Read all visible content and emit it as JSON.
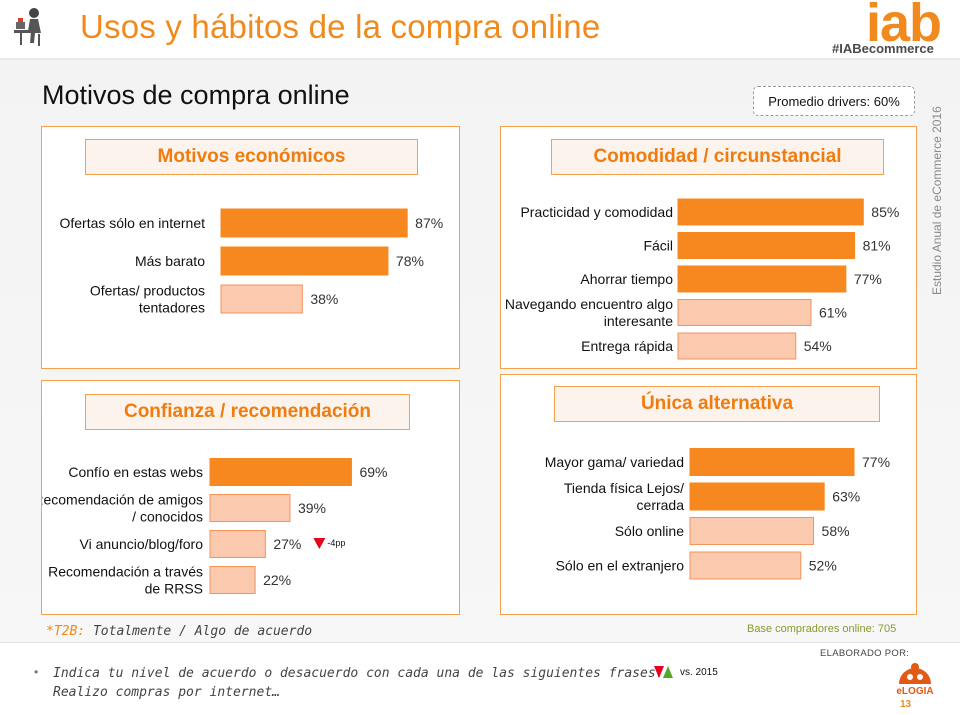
{
  "header": {
    "title": "Usos y hábitos de la compra online",
    "logo_text": "iab",
    "hashtag": "#IABecommerce",
    "section_title": "Motivos de compra online",
    "average_badge": "Promedio drivers: 60%",
    "side_note": "Estudio Anual de eCommerce 2016"
  },
  "colors": {
    "accent": "#f08a1c",
    "bar_dark": "#f7881f",
    "bar_light": "#fbc9ad",
    "bar_light_border": "#f2935a",
    "decline": "#e8001c",
    "increase": "#52a828"
  },
  "chart_data": [
    {
      "type": "bar",
      "title": "Motivos económicos",
      "categories": [
        "Ofertas sólo en internet",
        "Más barato",
        "Ofertas/ productos tentadores"
      ],
      "values": [
        87,
        78,
        38
      ],
      "labels": [
        "87%",
        "78%",
        "38%"
      ],
      "highlight": [
        true,
        true,
        false
      ],
      "xlim": [
        0,
        100
      ],
      "grid": false,
      "unit": "%"
    },
    {
      "type": "bar",
      "title": "Comodidad / circunstancial",
      "categories": [
        "Practicidad y comodidad",
        "Fácil",
        "Ahorrar tiempo",
        "Navegando encuentro algo interesante",
        "Entrega rápida"
      ],
      "values": [
        85,
        81,
        77,
        61,
        54
      ],
      "labels": [
        "85%",
        "81%",
        "77%",
        "61%",
        "54%"
      ],
      "highlight": [
        true,
        true,
        true,
        false,
        false
      ],
      "xlim": [
        0,
        100
      ],
      "grid": false,
      "unit": "%"
    },
    {
      "type": "bar",
      "title": "Confianza / recomendación",
      "categories": [
        "Confío en estas webs",
        "Recomendación de amigos / conocidos",
        "Vi anuncio/blog/foro",
        "Recomendación a través de RRSS"
      ],
      "values": [
        69,
        39,
        27,
        22
      ],
      "labels": [
        "69%",
        "39%",
        "27%",
        "22%"
      ],
      "highlight": [
        true,
        false,
        false,
        false
      ],
      "annotations": [
        {
          "category": "Vi anuncio/blog/foro",
          "text": "-4pp",
          "direction": "down"
        }
      ],
      "xlim": [
        0,
        100
      ],
      "grid": false,
      "unit": "%"
    },
    {
      "type": "bar",
      "title": "Única alternativa",
      "categories": [
        "Mayor gama/  variedad",
        "Tienda física Lejos/ cerrada",
        "Sólo online",
        "Sólo en el extranjero"
      ],
      "values": [
        77,
        63,
        58,
        52
      ],
      "labels": [
        "77%",
        "63%",
        "58%",
        "52%"
      ],
      "highlight": [
        true,
        true,
        false,
        false
      ],
      "xlim": [
        0,
        100
      ],
      "grid": false,
      "unit": "%"
    }
  ],
  "footer": {
    "t2b_key": "*T2B:",
    "t2b_text": " Totalmente / Algo de acuerdo",
    "base": "Base compradores online: 705",
    "bullet": "•",
    "question_line1": "Indica tu nivel de acuerdo o desacuerdo con cada una de las siguientes frases.",
    "question_line2": "Realizo compras por internet…",
    "legend_vs": "vs. 2015",
    "elaborated": "ELABORADO POR:",
    "partner_logo": "eLOGIA",
    "page_number": "13"
  }
}
